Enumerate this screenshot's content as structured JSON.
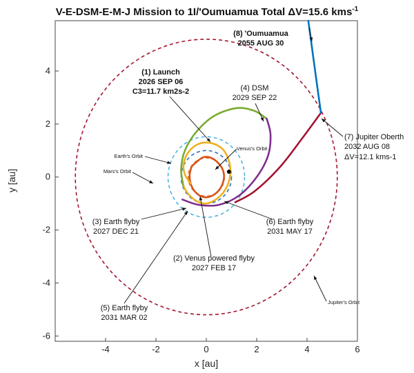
{
  "chart_data": {
    "type": "line",
    "title": "V-E-DSM-E-M-J Mission to 1I/'Oumuamua Total ΔV=15.6 kms",
    "title_sup": "-1",
    "xlabel": "x [au]",
    "ylabel": "y [au]",
    "xlim": [
      -6,
      6
    ],
    "ylim": [
      -6.2,
      5.9
    ],
    "xticks": [
      "-4",
      "-2",
      "0",
      "2",
      "4",
      "6"
    ],
    "yticks": [
      "-6",
      "-4",
      "-2",
      "0",
      "2",
      "4"
    ],
    "grid": false,
    "orbits": [
      {
        "label": "Venus's Orbit",
        "radius": 0.72,
        "color": "#e8702a"
      },
      {
        "label": "Earth's Orbit",
        "radius": 1.0,
        "color": "#2a6fbf"
      },
      {
        "label": "Mars's Orbit",
        "radius": 1.52,
        "color": "#4fb3e0"
      },
      {
        "label": "Jupiter's Orbit",
        "radius": 5.2,
        "color": "#a2142f"
      }
    ],
    "series": [
      {
        "color": "#d95319",
        "points": [
          [
            -0.58,
            0.4
          ],
          [
            -0.66,
            0.1
          ],
          [
            -0.62,
            -0.25
          ],
          [
            -0.45,
            -0.55
          ],
          [
            -0.15,
            -0.75
          ],
          [
            0.2,
            -0.72
          ],
          [
            0.5,
            -0.5
          ],
          [
            0.68,
            -0.15
          ],
          [
            0.68,
            0.2
          ],
          [
            0.5,
            0.5
          ],
          [
            0.2,
            0.72
          ],
          [
            -0.1,
            0.75
          ],
          [
            -0.35,
            0.6
          ],
          [
            -0.58,
            0.4
          ]
        ]
      },
      {
        "color": "#edb120",
        "points": [
          [
            -0.62,
            -0.25
          ],
          [
            -0.85,
            0.1
          ],
          [
            -0.9,
            0.5
          ],
          [
            -0.7,
            0.95
          ],
          [
            -0.3,
            1.25
          ],
          [
            0.2,
            1.28
          ],
          [
            0.65,
            1.05
          ],
          [
            0.9,
            0.6
          ],
          [
            0.95,
            0.1
          ],
          [
            0.8,
            -0.4
          ],
          [
            0.45,
            -0.8
          ],
          [
            0.0,
            -1.0
          ],
          [
            -0.4,
            -0.9
          ],
          [
            -0.75,
            -0.6
          ],
          [
            -0.92,
            -0.3
          ]
        ]
      },
      {
        "color": "#77ac30",
        "points": [
          [
            -0.92,
            -0.3
          ],
          [
            -1.0,
            0.3
          ],
          [
            -0.85,
            1.0
          ],
          [
            -0.4,
            1.7
          ],
          [
            0.3,
            2.3
          ],
          [
            1.2,
            2.6
          ],
          [
            1.9,
            2.5
          ],
          [
            2.4,
            2.2
          ]
        ]
      },
      {
        "color": "#7e2f8e",
        "points": [
          [
            2.4,
            2.2
          ],
          [
            2.55,
            1.6
          ],
          [
            2.45,
            0.8
          ],
          [
            2.0,
            0.0
          ],
          [
            1.3,
            -0.7
          ],
          [
            0.5,
            -1.05
          ],
          [
            -0.3,
            -1.05
          ],
          [
            -0.95,
            -0.85
          ]
        ]
      },
      {
        "color": "#a2142f",
        "points": [
          [
            1.15,
            -0.95
          ],
          [
            1.9,
            -0.55
          ],
          [
            2.9,
            0.35
          ],
          [
            3.8,
            1.45
          ],
          [
            4.55,
            2.42
          ]
        ]
      },
      {
        "color": "#0072bd",
        "points": [
          [
            4.55,
            2.42
          ],
          [
            4.35,
            3.8
          ],
          [
            4.15,
            5.2
          ],
          [
            4.05,
            5.9
          ]
        ]
      }
    ],
    "markers": [
      {
        "x": 0.9,
        "y": 0.2,
        "color": "#000000"
      }
    ],
    "annotations": [
      {
        "lines": [
          "(1) Launch",
          "2026 SEP 06",
          "C3=11.7 km2s-2"
        ],
        "bold": true
      },
      {
        "lines": [
          "(2) Venus powered flyby",
          "2027 FEB 17"
        ]
      },
      {
        "lines": [
          "(3) Earth flyby",
          "2027 DEC 21"
        ]
      },
      {
        "lines": [
          "(4) DSM",
          "2029 SEP 22"
        ]
      },
      {
        "lines": [
          "(5) Earth flyby",
          "2031 MAR 02"
        ]
      },
      {
        "lines": [
          "(6) Earth flyby",
          "2031 MAY 17"
        ]
      },
      {
        "lines": [
          "(7) Jupiter Oberth",
          "2032 AUG 08",
          "ΔV=12.1 kms-1"
        ]
      },
      {
        "lines": [
          "(8) 'Oumuamua",
          "2055 AUG 30"
        ],
        "bold": true
      }
    ],
    "orbit_labels": [
      "Earth's Orbit",
      "Venus's Orbit",
      "Mars's Orbit",
      "Jupiter's Orbit"
    ]
  }
}
